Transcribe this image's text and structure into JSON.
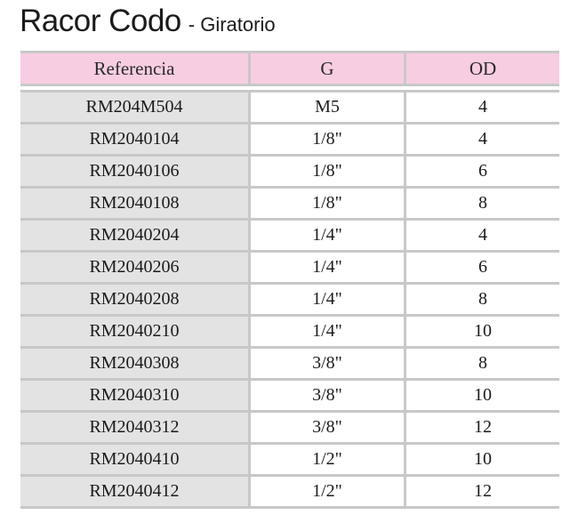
{
  "title": {
    "main": "Racor Codo",
    "sub": "- Giratorio"
  },
  "table": {
    "headers": [
      "Referencia",
      "G",
      "OD"
    ],
    "rows": [
      [
        "RM204M504",
        "M5",
        "4"
      ],
      [
        "RM2040104",
        "1/8\"",
        "4"
      ],
      [
        "RM2040106",
        "1/8\"",
        "6"
      ],
      [
        "RM2040108",
        "1/8\"",
        "8"
      ],
      [
        "RM2040204",
        "1/4\"",
        "4"
      ],
      [
        "RM2040206",
        "1/4\"",
        "6"
      ],
      [
        "RM2040208",
        "1/4\"",
        "8"
      ],
      [
        "RM2040210",
        "1/4\"",
        "10"
      ],
      [
        "RM2040308",
        "3/8\"",
        "8"
      ],
      [
        "RM2040310",
        "3/8\"",
        "10"
      ],
      [
        "RM2040312",
        "3/8\"",
        "12"
      ],
      [
        "RM2040410",
        "1/2\"",
        "10"
      ],
      [
        "RM2040412",
        "1/2\"",
        "12"
      ]
    ]
  },
  "colors": {
    "header_bg": "#f7cde2",
    "reference_column_bg": "#e3e3e3",
    "grid_lines": "#c8c8c8"
  }
}
